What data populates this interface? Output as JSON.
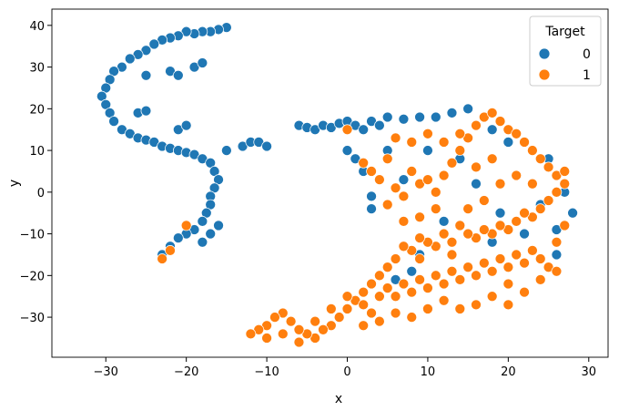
{
  "chart_data": {
    "type": "scatter",
    "title": "",
    "xlabel": "x",
    "ylabel": "y",
    "xlim": [
      -36.7,
      32.4
    ],
    "ylim": [
      -39.6,
      43.9
    ],
    "xticks": [
      -30,
      -20,
      -10,
      0,
      10,
      20,
      30
    ],
    "yticks": [
      -30,
      -20,
      -10,
      0,
      10,
      20,
      30,
      40
    ],
    "grid": false,
    "legend": {
      "title": "Target",
      "placement": "top-right",
      "entries": [
        "0",
        "1"
      ]
    },
    "series": [
      {
        "name": "0",
        "color": "#1f77b4",
        "points": [
          [
            -15,
            39.5
          ],
          [
            -16,
            39
          ],
          [
            -17,
            38.5
          ],
          [
            -18,
            38.5
          ],
          [
            -19,
            38
          ],
          [
            -20,
            38.5
          ],
          [
            -21,
            37.5
          ],
          [
            -22,
            37
          ],
          [
            -23,
            36.5
          ],
          [
            -24,
            35.5
          ],
          [
            -25,
            34
          ],
          [
            -26,
            33
          ],
          [
            -27,
            32
          ],
          [
            -28,
            30
          ],
          [
            -29,
            29
          ],
          [
            -29.5,
            27
          ],
          [
            -30,
            25
          ],
          [
            -30.5,
            23
          ],
          [
            -30,
            21
          ],
          [
            -29.5,
            19
          ],
          [
            -29,
            17
          ],
          [
            -28,
            15
          ],
          [
            -27,
            14
          ],
          [
            -26,
            13
          ],
          [
            -25,
            12.5
          ],
          [
            -24,
            12
          ],
          [
            -23,
            11
          ],
          [
            -22,
            10.5
          ],
          [
            -21,
            10
          ],
          [
            -20,
            9.5
          ],
          [
            -19,
            9
          ],
          [
            -18,
            8
          ],
          [
            -17,
            7
          ],
          [
            -16.5,
            5
          ],
          [
            -16,
            3
          ],
          [
            -16.5,
            1
          ],
          [
            -17,
            -1
          ],
          [
            -17,
            -3
          ],
          [
            -17.5,
            -5
          ],
          [
            -18,
            -7
          ],
          [
            -19,
            -9
          ],
          [
            -20,
            -10
          ],
          [
            -21,
            -11
          ],
          [
            -22,
            -13
          ],
          [
            -23,
            -15
          ],
          [
            -22,
            29
          ],
          [
            -21,
            28
          ],
          [
            -25,
            28
          ],
          [
            -19,
            30
          ],
          [
            -18,
            31
          ],
          [
            -26,
            19
          ],
          [
            -25,
            19.5
          ],
          [
            -21,
            15
          ],
          [
            -20,
            16
          ],
          [
            -15,
            10
          ],
          [
            -13,
            11
          ],
          [
            -12,
            12
          ],
          [
            -11,
            12
          ],
          [
            -10,
            11
          ],
          [
            -18,
            -12
          ],
          [
            -17,
            -10
          ],
          [
            -16,
            -8
          ],
          [
            -6,
            16
          ],
          [
            -5,
            15.5
          ],
          [
            -4,
            15
          ],
          [
            -3,
            16
          ],
          [
            -2,
            15.5
          ],
          [
            -1,
            16.5
          ],
          [
            0,
            17
          ],
          [
            1,
            16
          ],
          [
            2,
            15
          ],
          [
            3,
            17
          ],
          [
            4,
            16
          ],
          [
            5,
            18
          ],
          [
            7,
            17.5
          ],
          [
            9,
            18
          ],
          [
            11,
            18
          ],
          [
            13,
            19
          ],
          [
            15,
            20
          ],
          [
            0,
            10
          ],
          [
            2,
            5
          ],
          [
            3,
            -1
          ],
          [
            5,
            10
          ],
          [
            10,
            10
          ],
          [
            14,
            8
          ],
          [
            20,
            12
          ],
          [
            25,
            8
          ],
          [
            27,
            0
          ],
          [
            28,
            -5
          ],
          [
            22,
            -10
          ],
          [
            18,
            -12
          ],
          [
            8,
            -19
          ],
          [
            6,
            -21
          ],
          [
            9,
            -15
          ],
          [
            3,
            -4
          ],
          [
            16,
            2
          ],
          [
            24,
            -3
          ],
          [
            26,
            -9
          ],
          [
            12,
            -7
          ],
          [
            19,
            -5
          ],
          [
            7,
            3
          ],
          [
            1,
            8
          ],
          [
            18,
            15
          ],
          [
            26,
            -15
          ]
        ]
      },
      {
        "name": "1",
        "color": "#ff7f0e",
        "points": [
          [
            -23,
            -16
          ],
          [
            -22,
            -14
          ],
          [
            -20,
            -8
          ],
          [
            0,
            15
          ],
          [
            2,
            7
          ],
          [
            3,
            5
          ],
          [
            4,
            3
          ],
          [
            5,
            8
          ],
          [
            6,
            1
          ],
          [
            7,
            -1
          ],
          [
            8,
            5
          ],
          [
            9,
            2
          ],
          [
            10,
            3
          ],
          [
            11,
            0
          ],
          [
            12,
            4
          ],
          [
            13,
            7
          ],
          [
            14,
            10
          ],
          [
            15,
            13
          ],
          [
            16,
            16
          ],
          [
            17,
            18
          ],
          [
            18,
            19
          ],
          [
            19,
            17
          ],
          [
            20,
            15
          ],
          [
            21,
            14
          ],
          [
            22,
            12
          ],
          [
            23,
            10
          ],
          [
            24,
            8
          ],
          [
            25,
            6
          ],
          [
            26,
            4
          ],
          [
            27,
            5
          ],
          [
            27,
            2
          ],
          [
            26,
            0
          ],
          [
            25,
            -2
          ],
          [
            24,
            -4
          ],
          [
            23,
            -6
          ],
          [
            22,
            -5
          ],
          [
            21,
            -7
          ],
          [
            20,
            -9
          ],
          [
            19,
            -8
          ],
          [
            18,
            -10
          ],
          [
            17,
            -9
          ],
          [
            16,
            -11
          ],
          [
            15,
            -10
          ],
          [
            14,
            -8
          ],
          [
            13,
            -12
          ],
          [
            12,
            -10
          ],
          [
            11,
            -13
          ],
          [
            10,
            -12
          ],
          [
            9,
            -11
          ],
          [
            8,
            -14
          ],
          [
            7,
            -13
          ],
          [
            6,
            -16
          ],
          [
            5,
            -18
          ],
          [
            4,
            -20
          ],
          [
            3,
            -22
          ],
          [
            2,
            -24
          ],
          [
            1,
            -26
          ],
          [
            0,
            -28
          ],
          [
            -1,
            -30
          ],
          [
            -2,
            -32
          ],
          [
            -3,
            -33
          ],
          [
            -4,
            -35
          ],
          [
            -5,
            -34
          ],
          [
            -6,
            -33
          ],
          [
            -7,
            -31
          ],
          [
            -8,
            -29
          ],
          [
            -9,
            -30
          ],
          [
            -10,
            -32
          ],
          [
            -11,
            -33
          ],
          [
            -12,
            -34
          ],
          [
            -10,
            -35
          ],
          [
            -8,
            -34
          ],
          [
            -6,
            -36
          ],
          [
            -4,
            -31
          ],
          [
            -2,
            -28
          ],
          [
            0,
            -25
          ],
          [
            2,
            -27
          ],
          [
            4,
            -25
          ],
          [
            5,
            -23
          ],
          [
            6,
            -25
          ],
          [
            7,
            -22
          ],
          [
            8,
            -24
          ],
          [
            9,
            -21
          ],
          [
            10,
            -23
          ],
          [
            11,
            -20
          ],
          [
            12,
            -22
          ],
          [
            13,
            -19
          ],
          [
            14,
            -21
          ],
          [
            15,
            -18
          ],
          [
            16,
            -20
          ],
          [
            17,
            -17
          ],
          [
            18,
            -19
          ],
          [
            19,
            -16
          ],
          [
            20,
            -18
          ],
          [
            21,
            -15
          ],
          [
            22,
            -17
          ],
          [
            23,
            -14
          ],
          [
            24,
            -16
          ],
          [
            25,
            -18
          ],
          [
            26,
            -19
          ],
          [
            20,
            -22
          ],
          [
            18,
            -25
          ],
          [
            16,
            -27
          ],
          [
            14,
            -28
          ],
          [
            12,
            -26
          ],
          [
            10,
            -28
          ],
          [
            8,
            -30
          ],
          [
            6,
            -29
          ],
          [
            4,
            -31
          ],
          [
            2,
            -32
          ],
          [
            3,
            -29
          ],
          [
            13,
            -15
          ],
          [
            15,
            -4
          ],
          [
            11,
            -4
          ],
          [
            9,
            -6
          ],
          [
            17,
            -2
          ],
          [
            19,
            2
          ],
          [
            21,
            4
          ],
          [
            23,
            2
          ],
          [
            18,
            8
          ],
          [
            16,
            6
          ],
          [
            14,
            14
          ],
          [
            12,
            12
          ],
          [
            10,
            14
          ],
          [
            8,
            12
          ],
          [
            6,
            13
          ],
          [
            5,
            -3
          ],
          [
            7,
            -7
          ],
          [
            9,
            -16
          ],
          [
            20,
            -27
          ],
          [
            22,
            -24
          ],
          [
            24,
            -21
          ],
          [
            26,
            -12
          ],
          [
            27,
            -8
          ]
        ]
      }
    ]
  }
}
